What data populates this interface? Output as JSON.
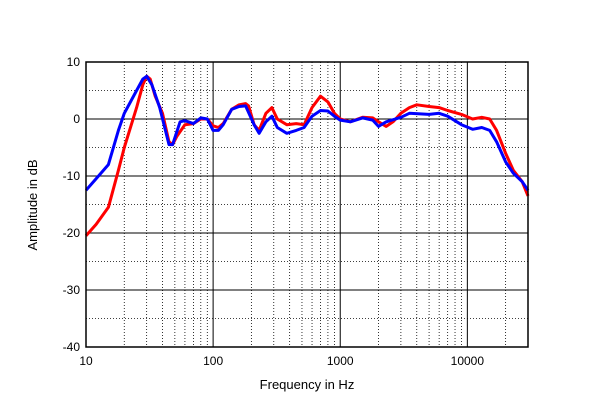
{
  "chart_data": {
    "type": "line",
    "title": "",
    "xlabel": "Frequency in Hz",
    "ylabel": "Amplitude in dB",
    "xscale": "log",
    "xlim": [
      10,
      30000
    ],
    "ylim": [
      -40,
      10
    ],
    "grid": true,
    "x_ticks": [
      "10",
      "100",
      "1000",
      "10000"
    ],
    "y_ticks": [
      "10",
      "0",
      "-10",
      "-20",
      "-30",
      "-40"
    ],
    "series": [
      {
        "name": "red",
        "color": "#ff0000",
        "points": [
          [
            10,
            -20.5
          ],
          [
            12,
            -18.5
          ],
          [
            15,
            -15.5
          ],
          [
            18,
            -9
          ],
          [
            20,
            -5
          ],
          [
            25,
            2
          ],
          [
            28,
            6
          ],
          [
            30,
            7.5
          ],
          [
            32,
            7
          ],
          [
            35,
            4
          ],
          [
            40,
            1
          ],
          [
            45,
            -4
          ],
          [
            48,
            -4.5
          ],
          [
            52,
            -3
          ],
          [
            60,
            -1
          ],
          [
            70,
            -0.8
          ],
          [
            80,
            0
          ],
          [
            90,
            0
          ],
          [
            100,
            -1.2
          ],
          [
            110,
            -1.5
          ],
          [
            120,
            -0.8
          ],
          [
            140,
            1.7
          ],
          [
            160,
            2.5
          ],
          [
            180,
            2.7
          ],
          [
            190,
            2.3
          ],
          [
            210,
            -1
          ],
          [
            230,
            -2
          ],
          [
            260,
            1
          ],
          [
            290,
            2
          ],
          [
            320,
            0
          ],
          [
            380,
            -1
          ],
          [
            450,
            -0.8
          ],
          [
            520,
            -1
          ],
          [
            600,
            2
          ],
          [
            700,
            4
          ],
          [
            800,
            3
          ],
          [
            900,
            1
          ],
          [
            1000,
            0
          ],
          [
            1200,
            -0.5
          ],
          [
            1500,
            0.3
          ],
          [
            1800,
            0.2
          ],
          [
            2000,
            -0.5
          ],
          [
            2300,
            -1.3
          ],
          [
            2600,
            -0.5
          ],
          [
            3000,
            1
          ],
          [
            3500,
            2
          ],
          [
            4000,
            2.5
          ],
          [
            5000,
            2.2
          ],
          [
            6000,
            2
          ],
          [
            7000,
            1.5
          ],
          [
            9000,
            0.8
          ],
          [
            11000,
            0
          ],
          [
            13000,
            0.3
          ],
          [
            15000,
            0
          ],
          [
            17000,
            -2
          ],
          [
            20000,
            -6
          ],
          [
            23000,
            -9
          ],
          [
            27000,
            -11
          ],
          [
            30000,
            -13.5
          ]
        ]
      },
      {
        "name": "blue",
        "color": "#0000ff",
        "points": [
          [
            10,
            -12.5
          ],
          [
            12,
            -10.5
          ],
          [
            15,
            -8
          ],
          [
            18,
            -2
          ],
          [
            20,
            1
          ],
          [
            25,
            5
          ],
          [
            28,
            7
          ],
          [
            30,
            7.5
          ],
          [
            33,
            6
          ],
          [
            38,
            2
          ],
          [
            45,
            -4.5
          ],
          [
            48,
            -4.5
          ],
          [
            55,
            -0.5
          ],
          [
            60,
            -0.3
          ],
          [
            70,
            -0.8
          ],
          [
            80,
            0.2
          ],
          [
            90,
            0
          ],
          [
            100,
            -2
          ],
          [
            110,
            -2
          ],
          [
            120,
            -1
          ],
          [
            140,
            1.7
          ],
          [
            160,
            2.2
          ],
          [
            180,
            2.3
          ],
          [
            210,
            -1
          ],
          [
            230,
            -2.5
          ],
          [
            260,
            -0.5
          ],
          [
            290,
            0.5
          ],
          [
            320,
            -1.5
          ],
          [
            380,
            -2.5
          ],
          [
            450,
            -2
          ],
          [
            520,
            -1.5
          ],
          [
            600,
            0.5
          ],
          [
            700,
            1.5
          ],
          [
            800,
            1.4
          ],
          [
            900,
            0.5
          ],
          [
            1000,
            -0.2
          ],
          [
            1200,
            -0.5
          ],
          [
            1500,
            0.2
          ],
          [
            1800,
            -0.2
          ],
          [
            2000,
            -1.3
          ],
          [
            2300,
            -0.5
          ],
          [
            3000,
            0.3
          ],
          [
            3500,
            1
          ],
          [
            5000,
            0.8
          ],
          [
            6000,
            1
          ],
          [
            7000,
            0.5
          ],
          [
            9000,
            -1
          ],
          [
            11000,
            -1.8
          ],
          [
            13000,
            -1.5
          ],
          [
            15000,
            -2
          ],
          [
            17000,
            -4
          ],
          [
            20000,
            -7.5
          ],
          [
            23000,
            -9.5
          ],
          [
            27000,
            -11
          ],
          [
            30000,
            -12.5
          ]
        ]
      }
    ]
  }
}
